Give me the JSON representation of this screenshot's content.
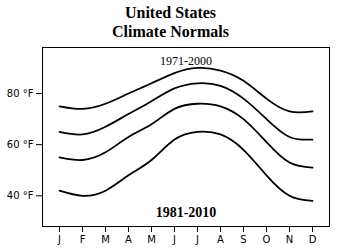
{
  "chart_data": {
    "type": "line",
    "title": "United States",
    "subtitle": "Climate Normals",
    "annotations": [
      "1971-2000",
      "1981-2010"
    ],
    "categories": [
      "J",
      "F",
      "M",
      "A",
      "M",
      "J",
      "J",
      "A",
      "S",
      "O",
      "N",
      "D"
    ],
    "series": [
      {
        "color": "#000000",
        "values": [
          75,
          74,
          76,
          80,
          84,
          88,
          90,
          89,
          85,
          78,
          73,
          73
        ]
      },
      {
        "color": "#000000",
        "values": [
          65,
          64,
          67,
          72,
          77,
          82,
          84,
          83,
          78,
          70,
          63,
          62
        ]
      },
      {
        "color": "#000000",
        "values": [
          55,
          54,
          57,
          63,
          68,
          74,
          76,
          75,
          70,
          61,
          53,
          51
        ]
      },
      {
        "color": "#000000",
        "values": [
          42,
          40,
          42,
          48,
          54,
          62,
          65,
          64,
          58,
          48,
          40,
          38
        ]
      }
    ],
    "ylim": [
      28,
      98
    ],
    "yticks": [
      {
        "value": 40,
        "label": "40 °F"
      },
      {
        "value": 60,
        "label": "60 °F"
      },
      {
        "value": 80,
        "label": "80 °F"
      }
    ],
    "grid": false
  }
}
